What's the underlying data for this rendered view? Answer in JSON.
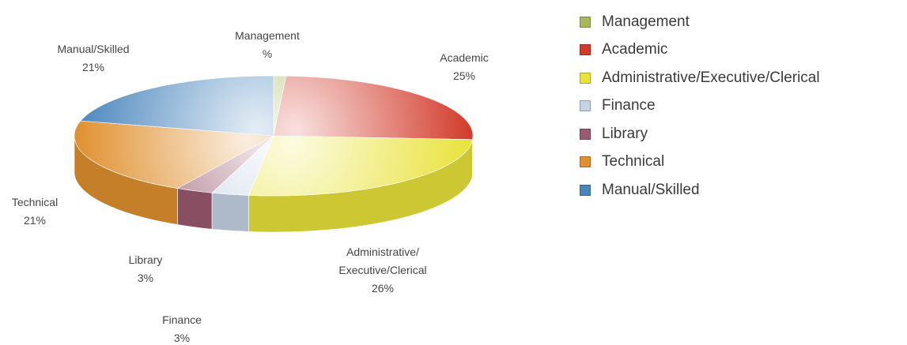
{
  "chart_data": {
    "type": "pie",
    "title": "",
    "categories": [
      "Management",
      "Academic",
      "Administrative/Executive/Clerical",
      "Finance",
      "Library",
      "Technical",
      "Manual/Skilled"
    ],
    "values": [
      1,
      25,
      26,
      3,
      3,
      21,
      21
    ],
    "value_labels": [
      "%",
      "25%",
      "26%",
      "3%",
      "3%",
      "21%",
      "21%"
    ],
    "slice_labels": [
      [
        "Management",
        "%"
      ],
      [
        "Academic",
        "25%"
      ],
      [
        "Administrative/",
        "Executive/Clerical",
        "26%"
      ],
      [
        "Finance",
        "3%"
      ],
      [
        "Library",
        "3%"
      ],
      [
        "Technical",
        "21%"
      ],
      [
        "Manual/Skilled",
        "21%"
      ]
    ],
    "colors": [
      "#a8b75c",
      "#d23a2a",
      "#e8e23a",
      "#c6d3e6",
      "#9a5a70",
      "#e0902e",
      "#4a86bd"
    ],
    "legend_position": "right"
  }
}
